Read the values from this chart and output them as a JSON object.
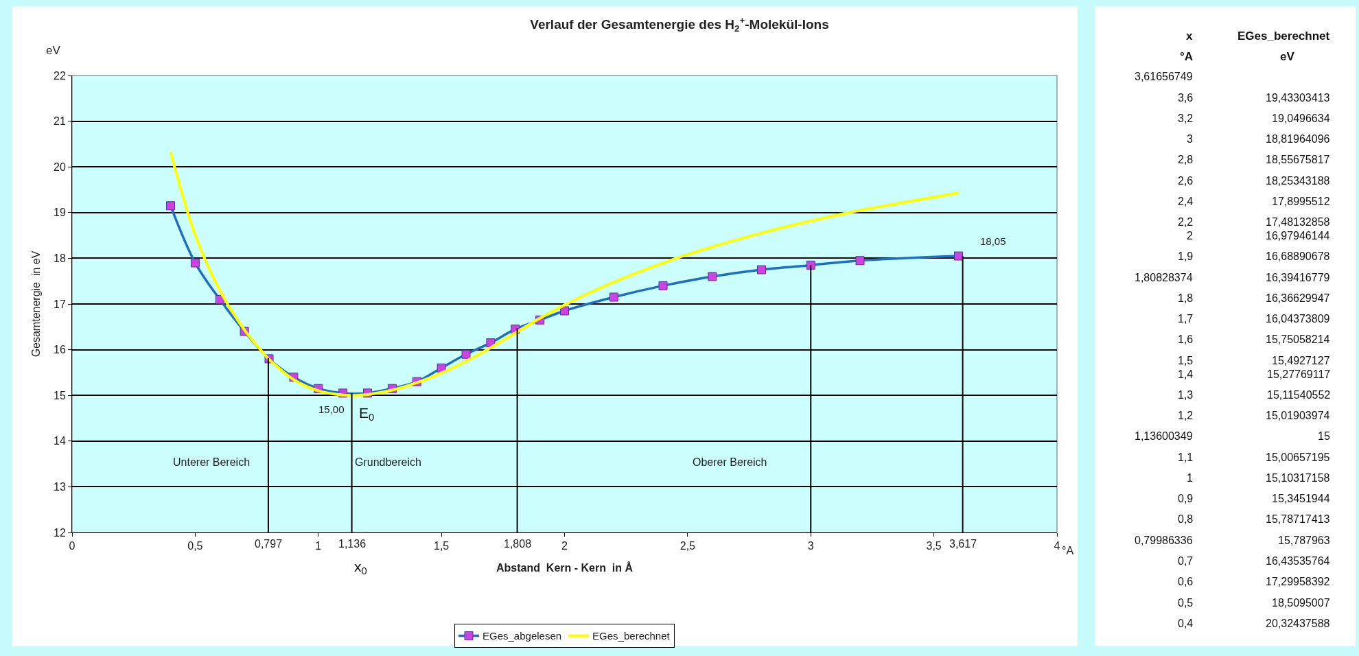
{
  "chart_data": [
    {
      "type": "line",
      "title": "Verlauf der Gesamtenergie des H$_{2}$$^{+}$-Molekül-Ions",
      "xlabel": "Abstand  Kern - Kern  in Å",
      "ylabel": "Gesamtenergie  in eV",
      "xlim": [
        0,
        4
      ],
      "xticks": [
        0,
        {
          "value": 0.5,
          "label": "0,5"
        },
        1,
        {
          "value": 1.5,
          "label": "1,5"
        },
        2,
        {
          "value": 2.5,
          "label": "2,5"
        },
        3,
        {
          "value": 3.5,
          "label": "3,5"
        },
        4
      ],
      "ylim": [
        12,
        22
      ],
      "yticks": [
        12,
        13,
        14,
        15,
        16,
        17,
        18,
        19,
        20,
        21,
        22
      ],
      "grid": "y",
      "legend": "bottom",
      "series": [
        {
          "name": "EGes_abgelesen",
          "color": "#1f6fc0",
          "marker": "square",
          "x": [
            0.4,
            0.5,
            0.6,
            0.7,
            0.8,
            0.9,
            1.0,
            1.1,
            1.2,
            1.3,
            1.4,
            1.5,
            1.6,
            1.7,
            1.8,
            1.9,
            2.0,
            2.2,
            2.4,
            2.6,
            2.8,
            3.0,
            3.2,
            3.6
          ],
          "values": [
            19.15,
            17.9,
            17.1,
            16.4,
            15.8,
            15.4,
            15.15,
            15.05,
            15.05,
            15.15,
            15.3,
            15.6,
            15.9,
            16.15,
            16.45,
            16.65,
            16.85,
            17.15,
            17.4,
            17.6,
            17.75,
            17.85,
            17.95,
            18.05
          ],
          "value_labels": [
            null,
            null,
            null,
            null,
            null,
            null,
            null,
            null,
            null,
            null,
            null,
            null,
            null,
            null,
            null,
            null,
            null,
            null,
            null,
            null,
            null,
            null,
            null,
            "18,05"
          ]
        },
        {
          "name": "EGes_berechnet",
          "color": "#ffff00",
          "x": [
            3.6,
            3.2,
            3,
            2.8,
            2.6,
            2.4,
            2.2,
            2,
            1.9,
            1.80828374,
            1.8,
            1.7,
            1.6,
            1.5,
            1.4,
            1.3,
            1.2,
            1.13600349,
            1.1,
            1,
            0.9,
            0.8,
            0.79986336,
            0.7,
            0.6,
            0.5,
            0.4
          ],
          "values": [
            19.43303413,
            19.0496634,
            18.81964096,
            18.55675817,
            18.25343188,
            17.8995512,
            17.48132858,
            16.97946144,
            16.68890678,
            16.39416779,
            16.36629947,
            16.04373809,
            15.75058214,
            15.4927127,
            15.27769117,
            15.11540552,
            15.01903974,
            15,
            15.00657195,
            15.10317158,
            15.3451944,
            15.78717413,
            15.787963,
            16.43535764,
            17.29958392,
            18.5095007,
            20.32437588
          ],
          "value_labels": [
            null,
            null,
            null,
            null,
            null,
            null,
            null,
            null,
            null,
            null,
            null,
            null,
            null,
            null,
            null,
            null,
            null,
            "15,00",
            null,
            null,
            null,
            null,
            null,
            null,
            null,
            null,
            null
          ]
        }
      ],
      "ref_lines": [
        {
          "axis": "x",
          "value": 0.797,
          "label": "0,797"
        },
        {
          "axis": "x",
          "value": 1.136,
          "label": "1,136"
        },
        {
          "axis": "x",
          "value": 1.808,
          "label": "1,808"
        },
        {
          "axis": "x",
          "value": 3,
          "label": null
        },
        {
          "axis": "x",
          "value": 3.617,
          "label": "3,617"
        }
      ],
      "annotations": [
        "eV",
        {
          "text": "E$_{0}$",
          "x": 1.13600349,
          "y": 15
        },
        "x$_{0}$",
        "°A",
        "Unterer Bereich",
        "Grundbereich",
        "Oberer Bereich"
      ]
    },
    {
      "type": "other",
      "xlabel": "x",
      "ylabel": "EGes_berechnet",
      "annotations": [
        "°A",
        "eV"
      ],
      "categories": [
        "3,61656749",
        "3,6",
        "3,2",
        "3",
        "2,8",
        "2,6",
        "2,4",
        "2,2",
        "2",
        "1,9",
        "1,80828374",
        "1,8",
        "1,7",
        "1,6",
        "1,5",
        "1,4",
        "1,3",
        "1,2",
        "1,13600349",
        "1,1",
        "1",
        "0,9",
        "0,8",
        "0,79986336",
        "0,7",
        "0,6",
        "0,5",
        "0,4"
      ],
      "value_labels": [
        null,
        "19,43303413",
        "19,0496634",
        "18,81964096",
        "18,55675817",
        "18,25343188",
        "17,8995512",
        "17,48132858",
        "16,97946144",
        "16,68890678",
        "16,39416779",
        "16,36629947",
        "16,04373809",
        "15,75058214",
        "15,4927127",
        "15,27769117",
        "15,11540552",
        "15,01903974",
        "15",
        "15,00657195",
        "15,10317158",
        "15,3451944",
        "15,78717413",
        "15,787963",
        "16,43535764",
        "17,29958392",
        "18,5095007",
        "20,32437588"
      ]
    }
  ]
}
